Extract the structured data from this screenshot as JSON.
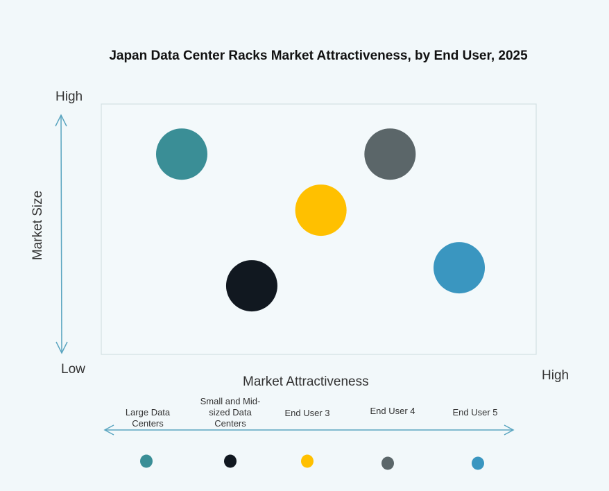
{
  "chart_data": {
    "type": "scatter",
    "title": "Japan Data Center Racks Market Attractiveness,  by End User, 2025",
    "xlabel": "Market Attractiveness",
    "ylabel": "Market Size",
    "x_low_label": "Low",
    "x_high_label": "High",
    "y_high_label": "High",
    "xlim": [
      0,
      100
    ],
    "ylim": [
      0,
      100
    ],
    "grid": false,
    "legend_placement": "bottom",
    "series": [
      {
        "name": "Large Data Centers",
        "x": 18.5,
        "y": 80,
        "color": "#3a8e96"
      },
      {
        "name": "Small and Mid-sized Data Centers",
        "x": 34.6,
        "y": 27.4,
        "color": "#111820"
      },
      {
        "name": "End User 3",
        "x": 50.5,
        "y": 57.6,
        "color": "#ffc000"
      },
      {
        "name": "End User 4",
        "x": 66.4,
        "y": 80,
        "color": "#5b6669"
      },
      {
        "name": "End User 5",
        "x": 82.3,
        "y": 34.6,
        "color": "#3a96c0"
      }
    ],
    "axis_color": "#5aa5c0"
  }
}
